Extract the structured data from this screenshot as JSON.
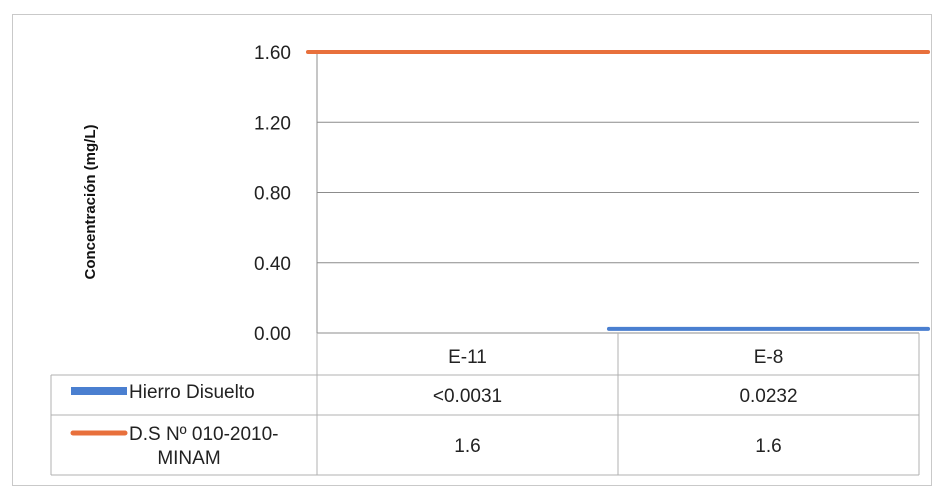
{
  "chart_data": {
    "type": "line",
    "title": "",
    "xlabel": "",
    "ylabel": "Concentración (mg/L)",
    "ylim": [
      0,
      1.6
    ],
    "yticks": [
      "1.60",
      "1.20",
      "0.80",
      "0.40",
      "0.00"
    ],
    "categories": [
      "E-11",
      "E-8"
    ],
    "grid": true,
    "legend": "data-table",
    "series": [
      {
        "name": "Hierro Disuelto",
        "values": [
          null,
          0.0232
        ],
        "table_values": [
          "<0.0031",
          "0.0232"
        ],
        "color": "#4a7fd0"
      },
      {
        "name": "D.S Nº 010-2010-MINAM",
        "name_lines": [
          "D.S Nº 010-2010-",
          "MINAM"
        ],
        "values": [
          1.6,
          1.6
        ],
        "table_values": [
          "1.6",
          "1.6"
        ],
        "color": "#e8703c"
      }
    ]
  }
}
